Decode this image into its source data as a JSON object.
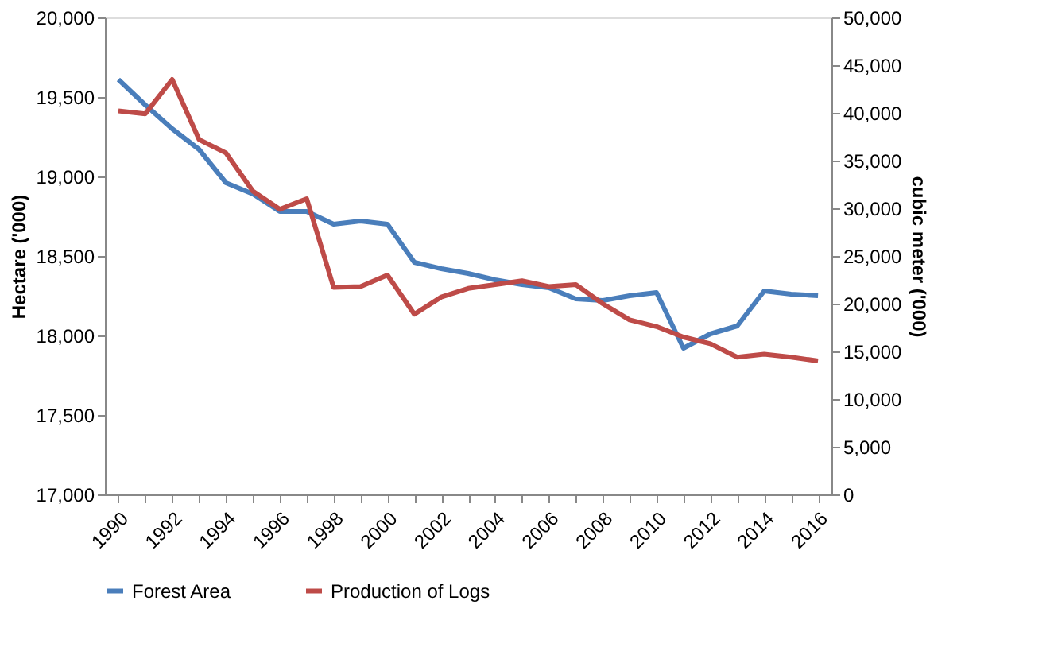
{
  "chart_data": {
    "type": "line",
    "x": [
      1990,
      1991,
      1992,
      1993,
      1994,
      1995,
      1996,
      1997,
      1998,
      1999,
      2000,
      2001,
      2002,
      2003,
      2004,
      2005,
      2006,
      2007,
      2008,
      2009,
      2010,
      2011,
      2012,
      2013,
      2014,
      2015,
      2016
    ],
    "series": [
      {
        "name": "Forest Area",
        "color": "#4a7ebb",
        "values": [
          19610,
          19450,
          19300,
          19170,
          18960,
          18890,
          18780,
          18780,
          18700,
          18720,
          18700,
          18460,
          18420,
          18390,
          18350,
          18320,
          18300,
          18230,
          18220,
          18250,
          18270,
          17920,
          18010,
          18060,
          18280,
          18260,
          18250
        ]
      },
      {
        "name": "Production of Logs",
        "color": "#be4b48",
        "axis": "y2",
        "values": [
          40200,
          39900,
          43500,
          37200,
          35800,
          31800,
          29900,
          31000,
          21700,
          21800,
          23000,
          18900,
          20700,
          21600,
          22000,
          22400,
          21800,
          22000,
          20000,
          18300,
          17600,
          16500,
          15800,
          14400,
          14700,
          14400,
          14000
        ]
      }
    ],
    "ylabel": "Hectare ('000)",
    "y2label": "cubic meter ('000)",
    "xlim": [
      1989.5,
      2016.5
    ],
    "xticks": [
      1990,
      {
        "value": 1991,
        "label": null
      },
      1992,
      {
        "value": 1993,
        "label": null
      },
      1994,
      {
        "value": 1995,
        "label": null
      },
      1996,
      {
        "value": 1997,
        "label": null
      },
      1998,
      {
        "value": 1999,
        "label": null
      },
      2000,
      {
        "value": 2001,
        "label": null
      },
      2002,
      {
        "value": 2003,
        "label": null
      },
      2004,
      {
        "value": 2005,
        "label": null
      },
      2006,
      {
        "value": 2007,
        "label": null
      },
      2008,
      {
        "value": 2009,
        "label": null
      },
      2010,
      {
        "value": 2011,
        "label": null
      },
      2012,
      {
        "value": 2013,
        "label": null
      },
      2014,
      {
        "value": 2015,
        "label": null
      },
      2016
    ],
    "ylim": [
      17000,
      20000
    ],
    "yticks": [
      {
        "value": 17000,
        "label": "17,000"
      },
      {
        "value": 17500,
        "label": "17,500"
      },
      {
        "value": 18000,
        "label": "18,000"
      },
      {
        "value": 18500,
        "label": "18,500"
      },
      {
        "value": 19000,
        "label": "19,000"
      },
      {
        "value": 19500,
        "label": "19,500"
      },
      {
        "value": 20000,
        "label": "20,000"
      }
    ],
    "y2lim": [
      0,
      50000
    ],
    "y2ticks": [
      0,
      {
        "value": 5000,
        "label": "5,000"
      },
      {
        "value": 10000,
        "label": "10,000"
      },
      {
        "value": 15000,
        "label": "15,000"
      },
      {
        "value": 20000,
        "label": "20,000"
      },
      {
        "value": 25000,
        "label": "25,000"
      },
      {
        "value": 30000,
        "label": "30,000"
      },
      {
        "value": 35000,
        "label": "35,000"
      },
      {
        "value": 40000,
        "label": "40,000"
      },
      {
        "value": 45000,
        "label": "45,000"
      },
      {
        "value": 50000,
        "label": "50,000"
      }
    ],
    "legend": "bottom",
    "grid": false,
    "marker": "none",
    "line_style": "solid"
  }
}
